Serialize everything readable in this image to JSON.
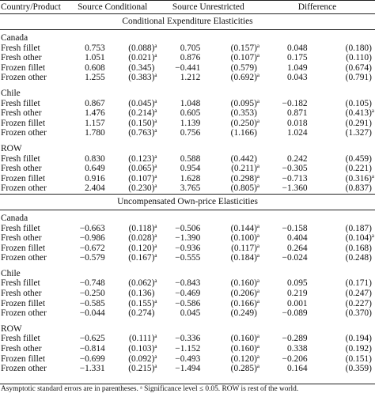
{
  "headers": {
    "col0": "Country/Product",
    "col1": "Source Conditional",
    "col2": "Source Unrestricted",
    "col3": "Difference"
  },
  "sections": [
    {
      "title": "Conditional Expenditure Elasticities",
      "groups": [
        {
          "country": "Canada",
          "rows": [
            {
              "product": "Fresh fillet",
              "sc": "0.753",
              "sc_se": "(0.088)",
              "sc_sig": "a",
              "su": "0.705",
              "su_se": "(0.157)",
              "su_sig": "a",
              "d": "0.048",
              "d_se": "(0.180)",
              "d_sig": ""
            },
            {
              "product": "Fresh other",
              "sc": "1.051",
              "sc_se": "(0.021)",
              "sc_sig": "a",
              "su": "0.876",
              "su_se": "(0.107)",
              "su_sig": "a",
              "d": "0.175",
              "d_se": "(0.110)",
              "d_sig": ""
            },
            {
              "product": "Frozen fillet",
              "sc": "0.608",
              "sc_se": "(0.345)",
              "sc_sig": "",
              "su": "−0.441",
              "su_se": "(0.579)",
              "su_sig": "",
              "d": "1.049",
              "d_se": "(0.674)",
              "d_sig": ""
            },
            {
              "product": "Frozen other",
              "sc": "1.255",
              "sc_se": "(0.383)",
              "sc_sig": "a",
              "su": "1.212",
              "su_se": "(0.692)",
              "su_sig": "a",
              "d": "0.043",
              "d_se": "(0.791)",
              "d_sig": ""
            }
          ]
        },
        {
          "country": "Chile",
          "rows": [
            {
              "product": "Fresh fillet",
              "sc": "0.867",
              "sc_se": "(0.045)",
              "sc_sig": "a",
              "su": "1.048",
              "su_se": "(0.095)",
              "su_sig": "a",
              "d": "−0.182",
              "d_se": "(0.105)",
              "d_sig": ""
            },
            {
              "product": "Fresh other",
              "sc": "1.476",
              "sc_se": "(0.214)",
              "sc_sig": "a",
              "su": "0.605",
              "su_se": "(0.353)",
              "su_sig": "",
              "d": "0.871",
              "d_se": "(0.413)",
              "d_sig": "a"
            },
            {
              "product": "Frozen fillet",
              "sc": "1.157",
              "sc_se": "(0.150)",
              "sc_sig": "a",
              "su": "1.139",
              "su_se": "(0.250)",
              "su_sig": "a",
              "d": "0.018",
              "d_se": "(0.291)",
              "d_sig": ""
            },
            {
              "product": "Frozen other",
              "sc": "1.780",
              "sc_se": "(0.763)",
              "sc_sig": "a",
              "su": "0.756",
              "su_se": "(1.166)",
              "su_sig": "",
              "d": "1.024",
              "d_se": "(1.327)",
              "d_sig": ""
            }
          ]
        },
        {
          "country": "ROW",
          "rows": [
            {
              "product": "Fresh fillet",
              "sc": "0.830",
              "sc_se": "(0.123)",
              "sc_sig": "a",
              "su": "0.588",
              "su_se": "(0.442)",
              "su_sig": "",
              "d": "0.242",
              "d_se": "(0.459)",
              "d_sig": ""
            },
            {
              "product": "Fresh other",
              "sc": "0.649",
              "sc_se": "(0.065)",
              "sc_sig": "a",
              "su": "0.954",
              "su_se": "(0.211)",
              "su_sig": "a",
              "d": "−0.305",
              "d_se": "(0.221)",
              "d_sig": ""
            },
            {
              "product": "Frozen fillet",
              "sc": "0.916",
              "sc_se": "(0.107)",
              "sc_sig": "a",
              "su": "1.628",
              "su_se": "(0.298)",
              "su_sig": "a",
              "d": "−0.713",
              "d_se": "(0.316)",
              "d_sig": "a"
            },
            {
              "product": "Frozen other",
              "sc": "2.404",
              "sc_se": "(0.230)",
              "sc_sig": "a",
              "su": "3.765",
              "su_se": "(0.805)",
              "su_sig": "a",
              "d": "−1.360",
              "d_se": "(0.837)",
              "d_sig": ""
            }
          ]
        }
      ]
    },
    {
      "title": "Uncompensated Own-price Elasticities",
      "groups": [
        {
          "country": "Canada",
          "rows": [
            {
              "product": "Fresh fillet",
              "sc": "−0.663",
              "sc_se": "(0.118)",
              "sc_sig": "a",
              "su": "−0.506",
              "su_se": "(0.144)",
              "su_sig": "a",
              "d": "−0.158",
              "d_se": "(0.187)",
              "d_sig": ""
            },
            {
              "product": "Fresh other",
              "sc": "−0.986",
              "sc_se": "(0.028)",
              "sc_sig": "a",
              "su": "−1.390",
              "su_se": "(0.100)",
              "su_sig": "a",
              "d": "0.404",
              "d_se": "(0.104)",
              "d_sig": "a"
            },
            {
              "product": "Frozen fillet",
              "sc": "−0.672",
              "sc_se": "(0.120)",
              "sc_sig": "a",
              "su": "−0.936",
              "su_se": "(0.117)",
              "su_sig": "a",
              "d": "0.264",
              "d_se": "(0.168)",
              "d_sig": ""
            },
            {
              "product": "Frozen other",
              "sc": "−0.579",
              "sc_se": "(0.167)",
              "sc_sig": "a",
              "su": "−0.555",
              "su_se": "(0.184)",
              "su_sig": "a",
              "d": "−0.024",
              "d_se": "(0.248)",
              "d_sig": ""
            }
          ]
        },
        {
          "country": "Chile",
          "rows": [
            {
              "product": "Fresh fillet",
              "sc": "−0.748",
              "sc_se": "(0.062)",
              "sc_sig": "a",
              "su": "−0.843",
              "su_se": "(0.160)",
              "su_sig": "a",
              "d": "0.095",
              "d_se": "(0.171)",
              "d_sig": ""
            },
            {
              "product": "Fresh other",
              "sc": "−0.250",
              "sc_se": "(0.136)",
              "sc_sig": "",
              "su": "−0.469",
              "su_se": "(0.206)",
              "su_sig": "a",
              "d": "0.219",
              "d_se": "(0.247)",
              "d_sig": ""
            },
            {
              "product": "Frozen fillet",
              "sc": "−0.585",
              "sc_se": "(0.155)",
              "sc_sig": "a",
              "su": "−0.586",
              "su_se": "(0.166)",
              "su_sig": "a",
              "d": "0.001",
              "d_se": "(0.227)",
              "d_sig": ""
            },
            {
              "product": "Frozen other",
              "sc": "−0.044",
              "sc_se": "(0.274)",
              "sc_sig": "",
              "su": "0.045",
              "su_se": "(0.249)",
              "su_sig": "",
              "d": "−0.089",
              "d_se": "(0.370)",
              "d_sig": ""
            }
          ]
        },
        {
          "country": "ROW",
          "rows": [
            {
              "product": "Fresh fillet",
              "sc": "−0.625",
              "sc_se": "(0.111)",
              "sc_sig": "a",
              "su": "−0.336",
              "su_se": "(0.160)",
              "su_sig": "a",
              "d": "−0.289",
              "d_se": "(0.194)",
              "d_sig": ""
            },
            {
              "product": "Fresh other",
              "sc": "−0.814",
              "sc_se": "(0.103)",
              "sc_sig": "a",
              "su": "−1.152",
              "su_se": "(0.160)",
              "su_sig": "a",
              "d": "0.338",
              "d_se": "(0.192)",
              "d_sig": ""
            },
            {
              "product": "Frozen fillet",
              "sc": "−0.699",
              "sc_se": "(0.092)",
              "sc_sig": "a",
              "su": "−0.493",
              "su_se": "(0.120)",
              "su_sig": "a",
              "d": "−0.206",
              "d_se": "(0.151)",
              "d_sig": ""
            },
            {
              "product": "Frozen other",
              "sc": "−1.331",
              "sc_se": "(0.215)",
              "sc_sig": "a",
              "su": "−1.494",
              "su_se": "(0.285)",
              "su_sig": "a",
              "d": "0.164",
              "d_se": "(0.359)",
              "d_sig": ""
            }
          ]
        }
      ]
    }
  ],
  "footnote": "Asymptotic standard errors are in parentheses. ᵃ Significance level ≤ 0.05. ROW is rest of the world."
}
